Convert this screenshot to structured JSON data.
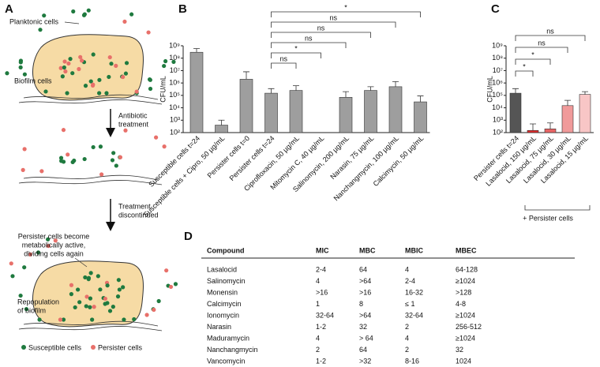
{
  "panel_labels": [
    "A",
    "B",
    "C",
    "D"
  ],
  "diagram": {
    "planktonic": "Planktonic cells",
    "biofilm": "Biofilm cells",
    "step1": [
      "Antibiotic",
      "treatment"
    ],
    "step2": [
      "Treatment",
      "discontinued"
    ],
    "persister_note": [
      "Persister cells become",
      "metabolically active,",
      "dividing cells again"
    ],
    "repopulation": [
      "Repopulation",
      "of biofilm"
    ],
    "legend": [
      {
        "name": "Susceptible cells",
        "color": "#1f7a3f"
      },
      {
        "name": "Persister cells",
        "color": "#e8706a"
      }
    ]
  },
  "chart_data": [
    {
      "type": "bar",
      "ylabel": "CFU/mL",
      "log_scale": true,
      "color": "#9e9e9e",
      "categories": [
        "Susceptible cells t=24",
        "Susceptible cells + Cipro, 50 µg/mL",
        "Persister cells t=0",
        "Persister cells t=24",
        "Ciprofloxacin, 50 µg/mL",
        "Mitomycin C, 40 µg/mL",
        "Salinomycin, 200 µg/mL",
        "Narasin, 75 µg/mL",
        "Nanchangmycin, 100 µg/mL",
        "Calcimycin, 50 µg/mL"
      ],
      "values": [
        300000000,
        400,
        2000000,
        150000,
        250000,
        null,
        70000,
        250000,
        500000,
        30000
      ],
      "errors": [
        300000000,
        600,
        6000000,
        200000,
        350000,
        null,
        130000,
        250000,
        800000,
        60000
      ],
      "ylim": [
        100,
        1000000000
      ],
      "yticks": [
        {
          "value": 100,
          "label": "10²"
        },
        {
          "value": 1000,
          "label": "10³"
        },
        {
          "value": 10000,
          "label": "10⁴"
        },
        {
          "value": 100000,
          "label": "10⁵"
        },
        {
          "value": 1000000,
          "label": "10⁶"
        },
        {
          "value": 10000000,
          "label": "10⁷"
        },
        {
          "value": 100000000,
          "label": "10⁸"
        },
        {
          "value": 1000000000,
          "label": "10⁹"
        }
      ],
      "comparisons": [
        {
          "from": "Persister cells t=24",
          "to": "Ciprofloxacin, 50 µg/mL",
          "label": "ns"
        },
        {
          "from": "Persister cells t=24",
          "to": "Mitomycin C, 40 µg/mL",
          "label": "*"
        },
        {
          "from": "Persister cells t=24",
          "to": "Salinomycin, 200 µg/mL",
          "label": "ns"
        },
        {
          "from": "Persister cells t=24",
          "to": "Narasin, 75 µg/mL",
          "label": "ns"
        },
        {
          "from": "Persister cells t=24",
          "to": "Nanchangmycin, 100 µg/mL",
          "label": "ns"
        },
        {
          "from": "Persister cells t=24",
          "to": "Calcimycin, 50 µg/mL",
          "label": "*"
        }
      ]
    },
    {
      "type": "bar",
      "ylabel": "CFU/mL",
      "log_scale": true,
      "colors": [
        "#555555",
        "#e02b2b",
        "#e86464",
        "#f09a9a",
        "#f8c6c6"
      ],
      "categories": [
        "Persister cells t=24",
        "Lasalocid, 150 µg/mL",
        "Lasalocid, 75 µg/mL",
        "Lasalocid, 30 µg/mL",
        "Lasalocid, 15 µg/mL"
      ],
      "values": [
        150000,
        150,
        200,
        15000,
        120000
      ],
      "errors": [
        200000,
        350,
        400,
        25000,
        80000
      ],
      "ylim": [
        100,
        1000000000
      ],
      "yticks": [
        {
          "value": 100,
          "label": "10²"
        },
        {
          "value": 1000,
          "label": "10³"
        },
        {
          "value": 10000,
          "label": "10⁴"
        },
        {
          "value": 100000,
          "label": "10⁵"
        },
        {
          "value": 1000000,
          "label": "10⁶"
        },
        {
          "value": 10000000,
          "label": "10⁷"
        },
        {
          "value": 100000000,
          "label": "10⁸"
        },
        {
          "value": 1000000000,
          "label": "10⁹"
        }
      ],
      "group_label": "+ Persister cells",
      "comparisons": [
        {
          "from": "Persister cells t=24",
          "to": "Lasalocid, 150 µg/mL",
          "label": "*"
        },
        {
          "from": "Persister cells t=24",
          "to": "Lasalocid, 75 µg/mL",
          "label": "*"
        },
        {
          "from": "Persister cells t=24",
          "to": "Lasalocid, 30 µg/mL",
          "label": "ns"
        },
        {
          "from": "Persister cells t=24",
          "to": "Lasalocid, 15 µg/mL",
          "label": "ns"
        }
      ]
    }
  ],
  "table": {
    "header": [
      "Compound",
      "MIC",
      "MBC",
      "MBIC",
      "MBEC"
    ],
    "rows": [
      [
        "Lasalocid",
        "2-4",
        "64",
        "4",
        "64-128"
      ],
      [
        "Salinomycin",
        "4",
        ">64",
        "2-4",
        "≥1024"
      ],
      [
        "Monensin",
        ">16",
        ">16",
        "16-32",
        ">128"
      ],
      [
        "Calcimycin",
        "1",
        "8",
        "≤ 1",
        "4-8"
      ],
      [
        "Ionomycin",
        "32-64",
        ">64",
        "32-64",
        "≥1024"
      ],
      [
        "Narasin",
        "1-2",
        "32",
        "2",
        "256-512"
      ],
      [
        "Maduramycin",
        "4",
        "> 64",
        "4",
        "≥1024"
      ],
      [
        "Nanchangmycin",
        "2",
        "64",
        "2",
        "32"
      ],
      [
        "Vancomycin",
        "1-2",
        ">32",
        "8-16",
        "1024"
      ]
    ],
    "row_colors": [
      "#e02b2b",
      null,
      null,
      "#3a55b0",
      null,
      null,
      null,
      null,
      null
    ]
  }
}
